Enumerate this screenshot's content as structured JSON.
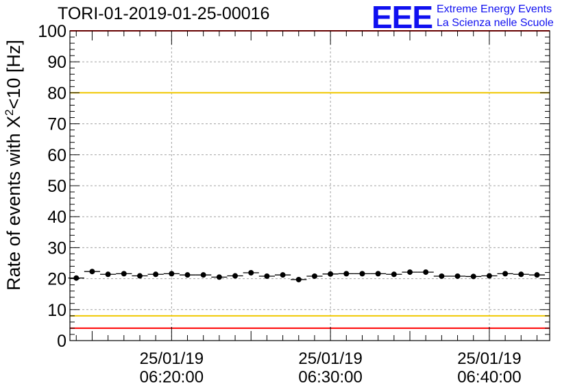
{
  "title": "TORI-01-2019-01-25-00016",
  "logo": {
    "mark": "EEE",
    "line1": "Extreme Energy Events",
    "line2": "La Scienza nelle Scuole"
  },
  "chart_data": {
    "type": "scatter",
    "title": "TORI-01-2019-01-25-00016",
    "xlabel": "",
    "ylabel": "Rate of events with X²<10 [Hz]",
    "ylabel_main": "Rate of events with X",
    "ylabel_sup": "2",
    "ylabel_tail": "<10 [Hz]",
    "ylim": [
      0,
      100
    ],
    "yticks": [
      0,
      10,
      20,
      30,
      40,
      50,
      60,
      70,
      80,
      90,
      100
    ],
    "xlim_minutes": [
      13.6,
      43.8
    ],
    "xticks": [
      {
        "minute": 20,
        "date": "25/01/19",
        "time": "06:20:00"
      },
      {
        "minute": 30,
        "date": "25/01/19",
        "time": "06:30:00"
      },
      {
        "minute": 40,
        "date": "25/01/19",
        "time": "06:40:00"
      }
    ],
    "grid": true,
    "bin_width_minutes": 1,
    "series": [
      {
        "name": "rate",
        "x_minutes": [
          14,
          15,
          16,
          17,
          18,
          19,
          20,
          21,
          22,
          23,
          24,
          25,
          26,
          27,
          28,
          29,
          30,
          31,
          32,
          33,
          34,
          35,
          36,
          37,
          38,
          39,
          40,
          41,
          42,
          43
        ],
        "values": [
          20.2,
          22.3,
          21.4,
          21.6,
          20.9,
          21.4,
          21.6,
          21.2,
          21.2,
          20.5,
          20.9,
          21.9,
          20.8,
          21.2,
          19.7,
          20.8,
          21.5,
          21.6,
          21.6,
          21.6,
          21.4,
          22.1,
          22.1,
          20.8,
          20.8,
          20.7,
          20.9,
          21.6,
          21.4,
          21.2
        ]
      }
    ],
    "reference_lines": [
      {
        "name": "upper-red-line",
        "y": 100,
        "color": "#ff0000"
      },
      {
        "name": "upper-yellow-line",
        "y": 80,
        "color": "#f0c800"
      },
      {
        "name": "lower-yellow-line",
        "y": 8,
        "color": "#f0c800"
      },
      {
        "name": "lower-red-line",
        "y": 4,
        "color": "#ff0000"
      }
    ]
  }
}
